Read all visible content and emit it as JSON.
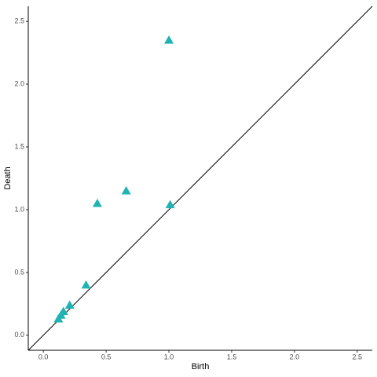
{
  "chart_data": {
    "type": "scatter",
    "x_label": "Birth",
    "y_label": "Death",
    "x": [
      0.12,
      0.14,
      0.16,
      0.21,
      0.34,
      0.43,
      0.66,
      1.01,
      1.0
    ],
    "values": [
      0.13,
      0.16,
      0.19,
      0.24,
      0.4,
      1.05,
      1.15,
      1.04,
      2.35
    ],
    "color": "#1fb3b3",
    "marker": "triangle",
    "diagonal": true,
    "xlim": [
      -0.12,
      2.62
    ],
    "ylim": [
      -0.12,
      2.62
    ],
    "xticks": [
      {
        "value": 0,
        "label": "0.0"
      },
      0.5,
      {
        "value": 1,
        "label": "1.0"
      },
      1.5,
      {
        "value": 2,
        "label": "2.0"
      },
      2.5
    ],
    "yticks": [
      {
        "value": 0,
        "label": "0.0"
      },
      0.5,
      {
        "value": 1,
        "label": "1.0"
      },
      1.5,
      {
        "value": 2,
        "label": "2.0"
      },
      2.5
    ]
  }
}
